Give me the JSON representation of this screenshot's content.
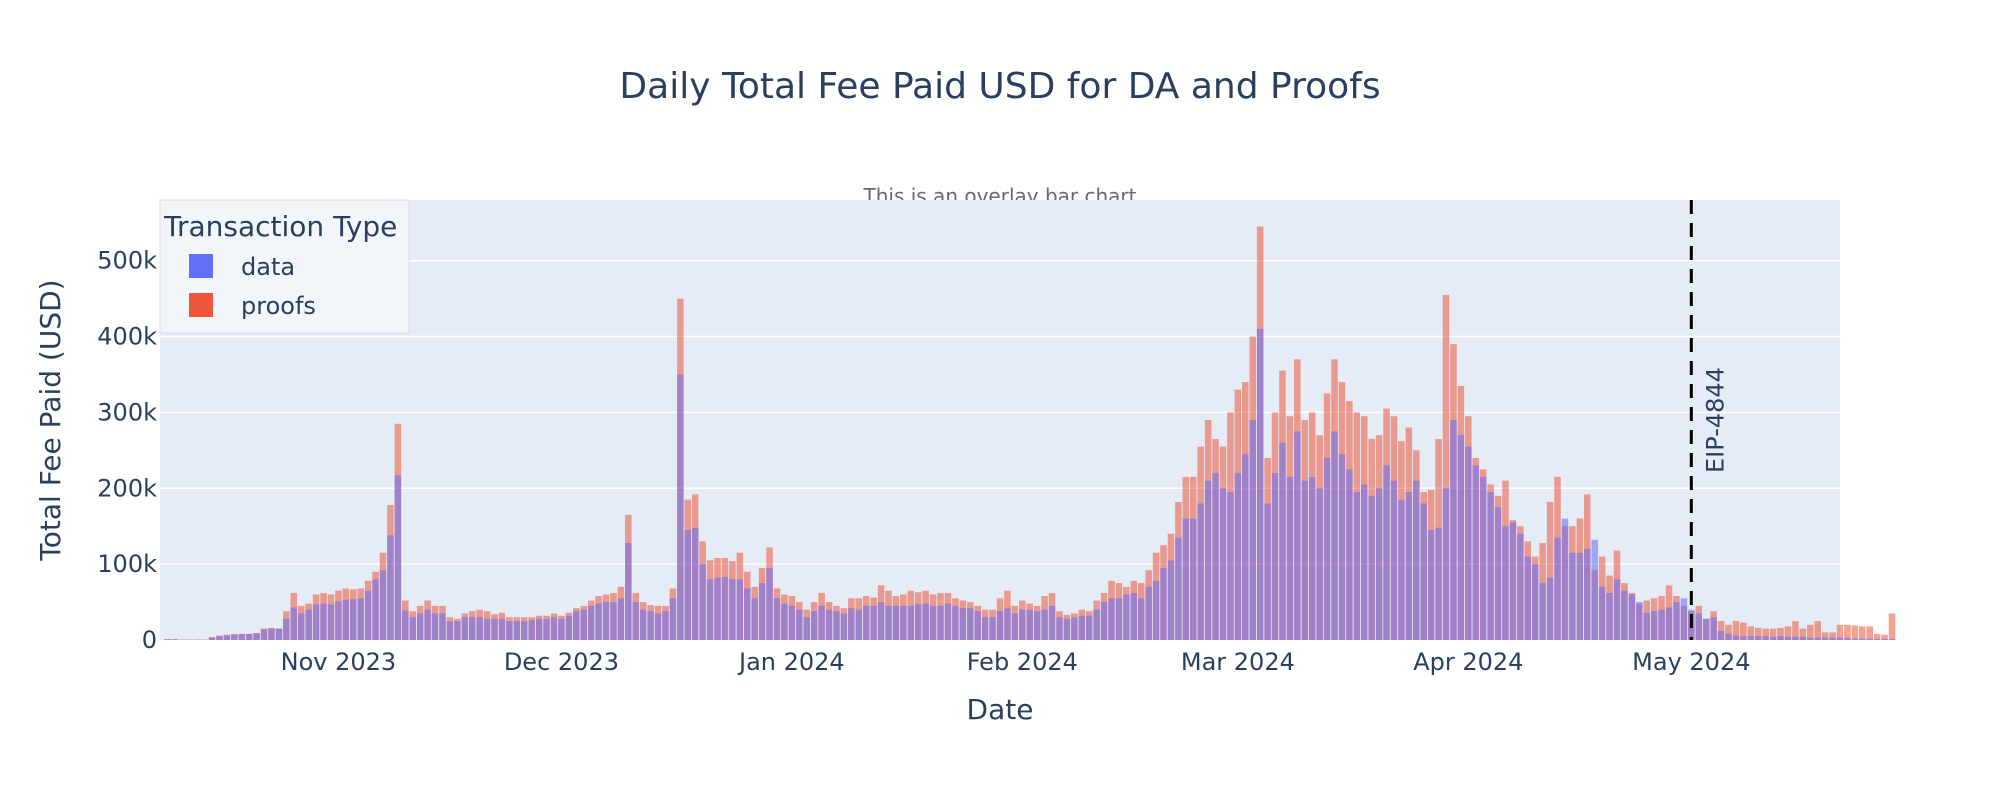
{
  "chart_data": {
    "type": "bar",
    "barmode": "overlay",
    "title": "Daily Total Fee Paid USD for DA and Proofs",
    "annotation": "This is an overlay bar chart",
    "xlabel": "Date",
    "ylabel": "Total Fee Paid (USD)",
    "x_start": "2023-10-09",
    "x_end": "2024-05-21",
    "xlim": [
      "2023-10-08",
      "2024-05-21"
    ],
    "ylim": [
      0,
      580000
    ],
    "y_ticks": [
      0,
      100000,
      200000,
      300000,
      400000,
      500000
    ],
    "y_tick_labels": [
      "0",
      "100k",
      "200k",
      "300k",
      "400k",
      "500k"
    ],
    "x_ticks": [
      "2023-11-01",
      "2023-12-01",
      "2024-01-01",
      "2024-02-01",
      "2024-03-01",
      "2024-04-01",
      "2024-05-01"
    ],
    "x_tick_labels": [
      "Nov 2023",
      "Dec 2023",
      "Jan 2024",
      "Feb 2024",
      "Mar 2024",
      "Apr 2024",
      "May 2024"
    ],
    "grid": true,
    "legend": {
      "title": "Transaction Type",
      "position": "top-left",
      "items": [
        "data",
        "proofs"
      ]
    },
    "vline": {
      "date": "2024-05-01",
      "label": "EIP-4844",
      "style": "dashed",
      "color": "#000000"
    },
    "colors": {
      "data": "#636efa",
      "proofs": "#ef553b",
      "plot_bg": "#e5ecf6",
      "text": "#2a3f5f"
    },
    "series": [
      {
        "name": "data",
        "values": [
          1000,
          1000,
          500,
          500,
          500,
          500,
          3000,
          5000,
          6000,
          7000,
          8000,
          8000,
          9000,
          14000,
          15000,
          15000,
          28000,
          43000,
          35000,
          40000,
          47000,
          48000,
          47000,
          51000,
          53000,
          54000,
          55000,
          65000,
          80000,
          92000,
          138000,
          217000,
          39000,
          30000,
          35000,
          40000,
          35000,
          35000,
          25000,
          25000,
          30000,
          30000,
          30000,
          28000,
          28000,
          28000,
          25000,
          25000,
          25000,
          26000,
          28000,
          28000,
          30000,
          28000,
          32000,
          38000,
          40000,
          45000,
          48000,
          50000,
          50000,
          55000,
          128000,
          50000,
          40000,
          38000,
          35000,
          38000,
          55000,
          350000,
          145000,
          148000,
          100000,
          80000,
          82000,
          83000,
          80000,
          80000,
          68000,
          55000,
          75000,
          95000,
          55000,
          48000,
          45000,
          40000,
          30000,
          38000,
          45000,
          40000,
          38000,
          35000,
          42000,
          40000,
          45000,
          45000,
          50000,
          45000,
          45000,
          45000,
          45000,
          47000,
          48000,
          45000,
          45000,
          48000,
          45000,
          42000,
          42000,
          38000,
          30000,
          30000,
          38000,
          42000,
          35000,
          40000,
          40000,
          38000,
          40000,
          45000,
          30000,
          28000,
          30000,
          32000,
          32000,
          40000,
          50000,
          55000,
          55000,
          60000,
          62000,
          55000,
          70000,
          78000,
          95000,
          105000,
          135000,
          160000,
          160000,
          180000,
          210000,
          220000,
          200000,
          195000,
          220000,
          245000,
          290000,
          410000,
          180000,
          220000,
          260000,
          215000,
          275000,
          210000,
          215000,
          200000,
          240000,
          275000,
          245000,
          225000,
          195000,
          205000,
          190000,
          200000,
          230000,
          210000,
          185000,
          195000,
          210000,
          180000,
          145000,
          148000,
          200000,
          290000,
          270000,
          255000,
          230000,
          215000,
          195000,
          175000,
          150000,
          155000,
          140000,
          110000,
          100000,
          75000,
          82000,
          135000,
          160000,
          115000,
          115000,
          120000,
          132000,
          70000,
          62000,
          80000,
          65000,
          60000,
          50000,
          36000,
          38000,
          40000,
          43000,
          50000,
          55000,
          40000,
          35000,
          28000,
          30000,
          12000,
          8000,
          6000,
          5000,
          5000,
          5000,
          5000,
          4000,
          5000,
          4000,
          4000,
          4000,
          3000,
          3000,
          3000,
          3000,
          3000,
          3000,
          2000,
          2000,
          2000,
          1500,
          1500,
          1500
        ]
      },
      {
        "name": "proofs",
        "values": [
          1000,
          1000,
          500,
          500,
          500,
          500,
          4000,
          6000,
          7000,
          8000,
          8000,
          8000,
          9000,
          15000,
          16000,
          15000,
          38000,
          62000,
          45000,
          48000,
          60000,
          62000,
          60000,
          65000,
          68000,
          67000,
          68000,
          78000,
          90000,
          115000,
          178000,
          285000,
          52000,
          38000,
          45000,
          52000,
          45000,
          45000,
          30000,
          28000,
          35000,
          38000,
          40000,
          38000,
          34000,
          36000,
          30000,
          30000,
          30000,
          30000,
          32000,
          32000,
          35000,
          32000,
          36000,
          42000,
          45000,
          52000,
          58000,
          60000,
          62000,
          70000,
          165000,
          62000,
          50000,
          46000,
          45000,
          45000,
          68000,
          450000,
          185000,
          192000,
          130000,
          105000,
          108000,
          108000,
          104000,
          115000,
          90000,
          70000,
          95000,
          122000,
          68000,
          60000,
          58000,
          50000,
          40000,
          50000,
          62000,
          50000,
          45000,
          42000,
          55000,
          55000,
          58000,
          56000,
          72000,
          65000,
          58000,
          60000,
          65000,
          63000,
          65000,
          60000,
          62000,
          62000,
          55000,
          52000,
          50000,
          45000,
          40000,
          40000,
          55000,
          65000,
          45000,
          52000,
          48000,
          45000,
          58000,
          62000,
          38000,
          33000,
          35000,
          40000,
          38000,
          52000,
          62000,
          78000,
          75000,
          70000,
          78000,
          75000,
          92000,
          115000,
          125000,
          140000,
          182000,
          215000,
          215000,
          255000,
          290000,
          265000,
          255000,
          300000,
          330000,
          340000,
          400000,
          545000,
          240000,
          300000,
          355000,
          295000,
          370000,
          290000,
          300000,
          270000,
          325000,
          370000,
          340000,
          315000,
          300000,
          295000,
          265000,
          270000,
          305000,
          295000,
          262000,
          280000,
          250000,
          195000,
          198000,
          265000,
          455000,
          390000,
          335000,
          295000,
          240000,
          225000,
          205000,
          190000,
          210000,
          158000,
          150000,
          130000,
          110000,
          128000,
          182000,
          215000,
          150000,
          150000,
          160000,
          192000,
          92000,
          110000,
          85000,
          118000,
          75000,
          62000,
          48000,
          52000,
          55000,
          58000,
          72000,
          58000,
          45000,
          38000,
          45000,
          28000,
          38000,
          25000,
          20000,
          25000,
          23000,
          18000,
          16000,
          15000,
          15000,
          16000,
          18000,
          25000,
          15000,
          20000,
          25000,
          10000,
          10000,
          20000,
          20000,
          19000,
          18000,
          18000,
          8000,
          7000,
          35000
        ]
      }
    ]
  }
}
